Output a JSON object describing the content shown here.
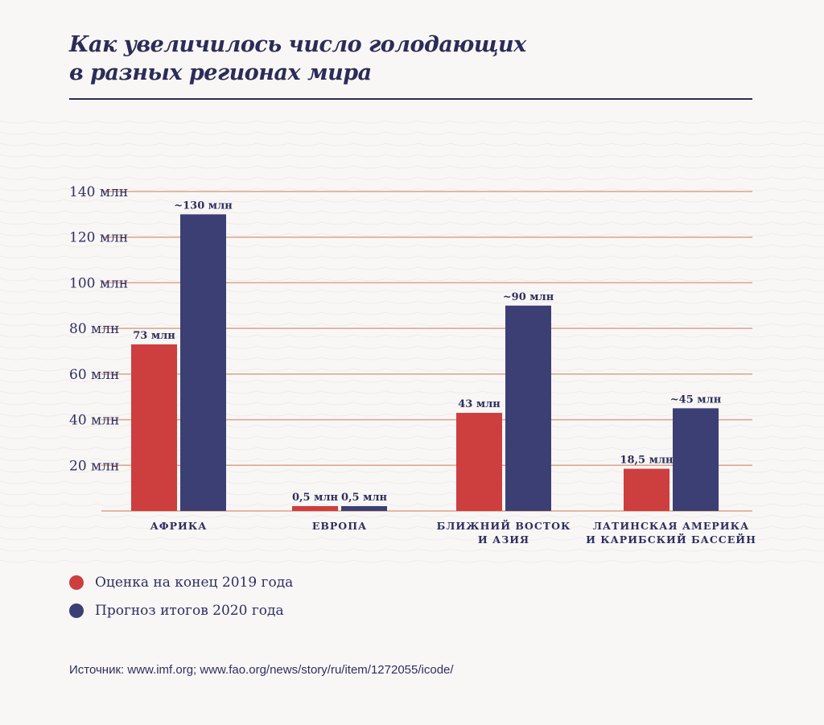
{
  "title": {
    "line1": "Как увеличилось число голодающих",
    "line2": "в разных регионах мира"
  },
  "legend": {
    "items": [
      {
        "label": "Оценка на конец 2019 года",
        "color": "#cd3e3e"
      },
      {
        "label": "Прогноз итогов 2020 года",
        "color": "#3c3f74"
      }
    ]
  },
  "source": "Источник: www.imf.org;  www.fao.org/news/story/ru/item/1272055/icode/",
  "chart_data": {
    "type": "bar",
    "categories": [
      [
        "АФРИКА"
      ],
      [
        "ЕВРОПА"
      ],
      [
        "БЛИЖНИЙ ВОСТОК",
        "И АЗИЯ"
      ],
      [
        "ЛАТИНСКАЯ АМЕРИКА",
        "И КАРИБСКИЙ БАССЕЙН"
      ]
    ],
    "series": [
      {
        "name": "Оценка на конец 2019 года",
        "color": "#cd3e3e",
        "values": [
          73,
          0.5,
          43,
          18.5
        ],
        "labels": [
          "73 млн",
          "0,5 млн",
          "43 млн",
          "18,5 млн"
        ]
      },
      {
        "name": "Прогноз итогов 2020 года",
        "color": "#3c3f74",
        "values": [
          130,
          0.5,
          90,
          45
        ],
        "labels": [
          "~130 млн",
          "0,5 млн",
          "~90 млн",
          "~45 млн"
        ]
      }
    ],
    "yticks": [
      20,
      40,
      60,
      80,
      100,
      120,
      140
    ],
    "ytick_labels": [
      "20 млн",
      "40 млн",
      "60 млн",
      "80 млн",
      "100 млн",
      "120 млн",
      "140 млн"
    ],
    "ylim": [
      0,
      140
    ],
    "grid": true,
    "grid_color": "#d9a38a",
    "legend_position": "bottom-left"
  }
}
